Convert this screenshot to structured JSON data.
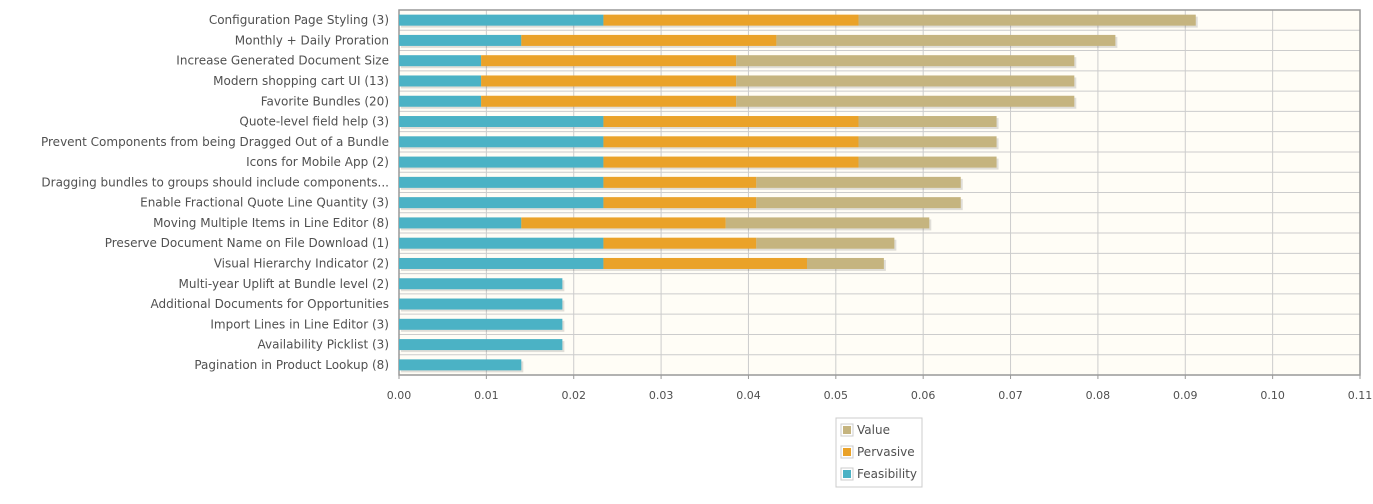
{
  "chart_data": {
    "type": "bar",
    "orientation": "horizontal",
    "stacked": true,
    "categories": [
      "Configuration Page Styling (3)",
      "Monthly + Daily Proration",
      "Increase Generated Document Size",
      "Modern shopping cart UI (13)",
      "Favorite Bundles (20)",
      "Quote-level field help (3)",
      "Prevent Components from being Dragged Out of a Bundle",
      "Icons for Mobile App (2)",
      "Dragging bundles to groups should include components...",
      "Enable Fractional Quote Line Quantity (3)",
      "Moving Multiple Items in Line Editor (8)",
      "Preserve Document Name on File Download (1)",
      "Visual Hierarchy Indicator (2)",
      "Multi-year Uplift at Bundle level (2)",
      "Additional Documents for Opportunities",
      "Import Lines in Line Editor (3)",
      "Availability Picklist (3)",
      "Pagination in Product Lookup (8)"
    ],
    "series": [
      {
        "name": "Feasibility",
        "color": "#4bb2c5",
        "values": [
          0.0234,
          0.014,
          0.0094,
          0.0094,
          0.0094,
          0.0234,
          0.0234,
          0.0234,
          0.0234,
          0.0234,
          0.014,
          0.0234,
          0.0234,
          0.0187,
          0.0187,
          0.0187,
          0.0187,
          0.014
        ]
      },
      {
        "name": "Pervasive",
        "color": "#eaa228",
        "values": [
          0.0292,
          0.0292,
          0.0292,
          0.0292,
          0.0292,
          0.0292,
          0.0292,
          0.0292,
          0.0175,
          0.0175,
          0.0234,
          0.0175,
          0.0233,
          0,
          0,
          0,
          0,
          0
        ]
      },
      {
        "name": "Value",
        "color": "#c5b47f",
        "values": [
          0.0386,
          0.0388,
          0.0387,
          0.0387,
          0.0387,
          0.0158,
          0.0158,
          0.0158,
          0.0234,
          0.0234,
          0.0233,
          0.0158,
          0.0088,
          0,
          0,
          0,
          0,
          0
        ]
      }
    ],
    "xlim": [
      0,
      0.11
    ],
    "xticks": [
      "0.00",
      "0.01",
      "0.02",
      "0.03",
      "0.04",
      "0.05",
      "0.06",
      "0.07",
      "0.08",
      "0.09",
      "0.10",
      "0.11"
    ],
    "xtick_values": [
      0,
      0.01,
      0.02,
      0.03,
      0.04,
      0.05,
      0.06,
      0.07,
      0.08,
      0.09,
      0.1,
      0.11
    ],
    "legend": {
      "placement": "bottom",
      "entries": [
        "Value",
        "Pervasive",
        "Feasibility"
      ]
    },
    "grid": true,
    "colors": {
      "plot_background": "#fffdf6",
      "grid": "#cccccc",
      "border": "#999999",
      "text": "#505050"
    }
  }
}
